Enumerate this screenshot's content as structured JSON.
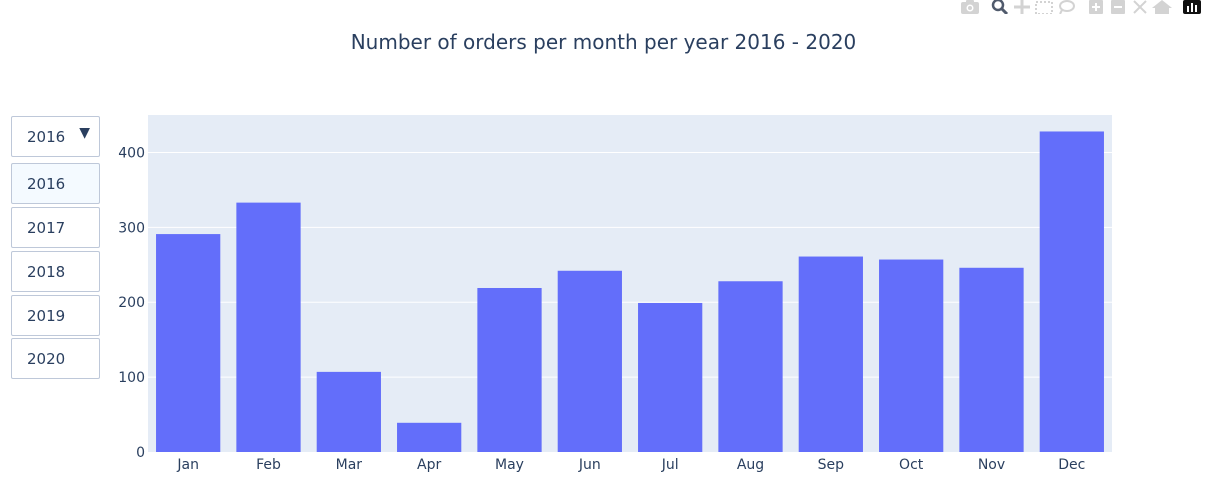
{
  "modebar": {
    "icons": [
      "camera-icon",
      "zoom-icon",
      "pan-icon",
      "box-select-icon",
      "lasso-select-icon",
      "zoom-in-icon",
      "zoom-out-icon",
      "autoscale-icon",
      "reset-axes-icon",
      "plotly-logo-icon"
    ]
  },
  "dropdown": {
    "selected": "2016",
    "options": [
      "2016",
      "2017",
      "2018",
      "2019",
      "2020"
    ]
  },
  "colors": {
    "bar": "#636efa",
    "plot_bg": "#e5ecf6",
    "grid": "#ffffff",
    "text": "#2a3f5f"
  },
  "chart_data": {
    "type": "bar",
    "title": "Number of orders per month per year 2016 - 2020",
    "categories": [
      "Jan",
      "Feb",
      "Mar",
      "Apr",
      "May",
      "Jun",
      "Jul",
      "Aug",
      "Sep",
      "Oct",
      "Nov",
      "Dec"
    ],
    "values": [
      291,
      333,
      107,
      39,
      219,
      242,
      199,
      228,
      261,
      257,
      246,
      428
    ],
    "ylim": [
      0,
      450
    ],
    "yticks": [
      0,
      100,
      200,
      300,
      400
    ],
    "xlabel": "",
    "ylabel": "",
    "grid": true,
    "legend": "none"
  }
}
